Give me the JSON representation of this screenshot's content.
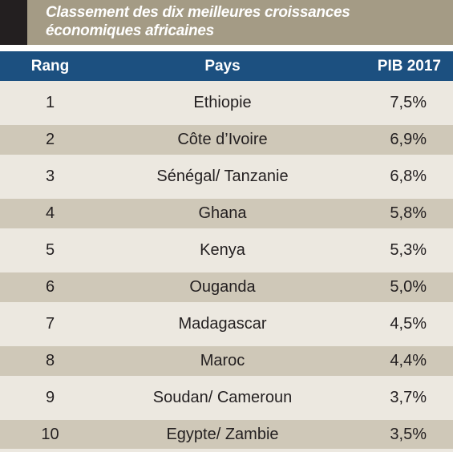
{
  "title": {
    "line1": "Classement des dix meilleures croissances",
    "line2": "économiques africaines"
  },
  "colors": {
    "title_bar": "#a49b85",
    "title_accent": "#231f20",
    "header": "#1c5080",
    "row_light": "#ece8e0",
    "row_dark": "#cfc8b8"
  },
  "chart_data": {
    "type": "table",
    "title": "Classement des dix meilleures croissances économiques africaines",
    "columns": [
      "Rang",
      "Pays",
      "PIB 2017"
    ],
    "rows": [
      {
        "rank": "1",
        "country": "Ethiopie",
        "gdp": "7,5%"
      },
      {
        "rank": "2",
        "country": "Côte d’Ivoire",
        "gdp": "6,9%"
      },
      {
        "rank": "3",
        "country": "Sénégal/ Tanzanie",
        "gdp": "6,8%"
      },
      {
        "rank": "4",
        "country": "Ghana",
        "gdp": "5,8%"
      },
      {
        "rank": "5",
        "country": "Kenya",
        "gdp": "5,3%"
      },
      {
        "rank": "6",
        "country": "Ouganda",
        "gdp": "5,0%"
      },
      {
        "rank": "7",
        "country": "Madagascar",
        "gdp": "4,5%"
      },
      {
        "rank": "8",
        "country": "Maroc",
        "gdp": "4,4%"
      },
      {
        "rank": "9",
        "country": "Soudan/ Cameroun",
        "gdp": "3,7%"
      },
      {
        "rank": "10",
        "country": "Egypte/ Zambie",
        "gdp": "3,5%"
      }
    ]
  }
}
